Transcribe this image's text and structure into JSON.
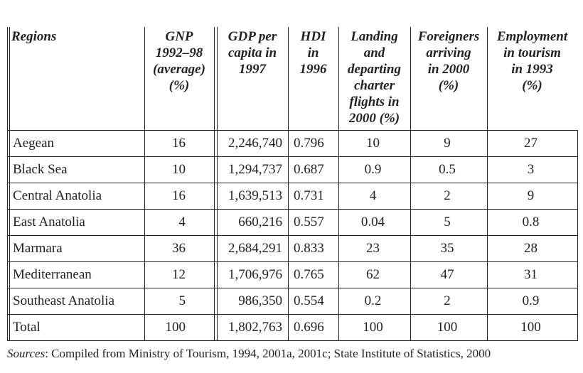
{
  "table": {
    "headers": [
      [
        "Regions"
      ],
      [
        "GNP",
        "1992–98",
        "(average)",
        "(%)"
      ],
      [
        "GDP per",
        "capita in",
        "1997"
      ],
      [
        "HDI",
        "in",
        "1996"
      ],
      [
        "Landing",
        "and",
        "departing",
        "charter",
        "flights in",
        "2000 (%)"
      ],
      [
        "Foreigners",
        "arriving",
        "in 2000",
        "(%)"
      ],
      [
        "Employment",
        "in tourism",
        "in 1993",
        "(%)"
      ]
    ],
    "rows": [
      [
        "Aegean",
        "16",
        "2,246,740",
        "0.796",
        "10",
        "9",
        "27"
      ],
      [
        "Black Sea",
        "10",
        "1,294,737",
        "0.687",
        "0.9",
        "0.5",
        "3"
      ],
      [
        "Central Anatolia",
        "16",
        "1,639,513",
        "0.731",
        "4",
        "2",
        "9"
      ],
      [
        "East Anatolia",
        "4",
        "660,216",
        "0.557",
        "0.04",
        "5",
        "0.8"
      ],
      [
        "Marmara",
        "36",
        "2,684,291",
        "0.833",
        "23",
        "35",
        "28"
      ],
      [
        "Mediterranean",
        "12",
        "1,706,976",
        "0.765",
        "62",
        "47",
        "31"
      ],
      [
        "Southeast Anatolia",
        "5",
        "986,350",
        "0.554",
        "0.2",
        "2",
        "0.9"
      ],
      [
        "Total",
        "100",
        "1,802,763",
        "0.696",
        "100",
        "100",
        "100"
      ]
    ]
  },
  "note": {
    "label": "Sources",
    "text": ": Compiled from Ministry of Tourism, 1994, 2001a, 2001c; State Institute of Statistics, 2000"
  }
}
